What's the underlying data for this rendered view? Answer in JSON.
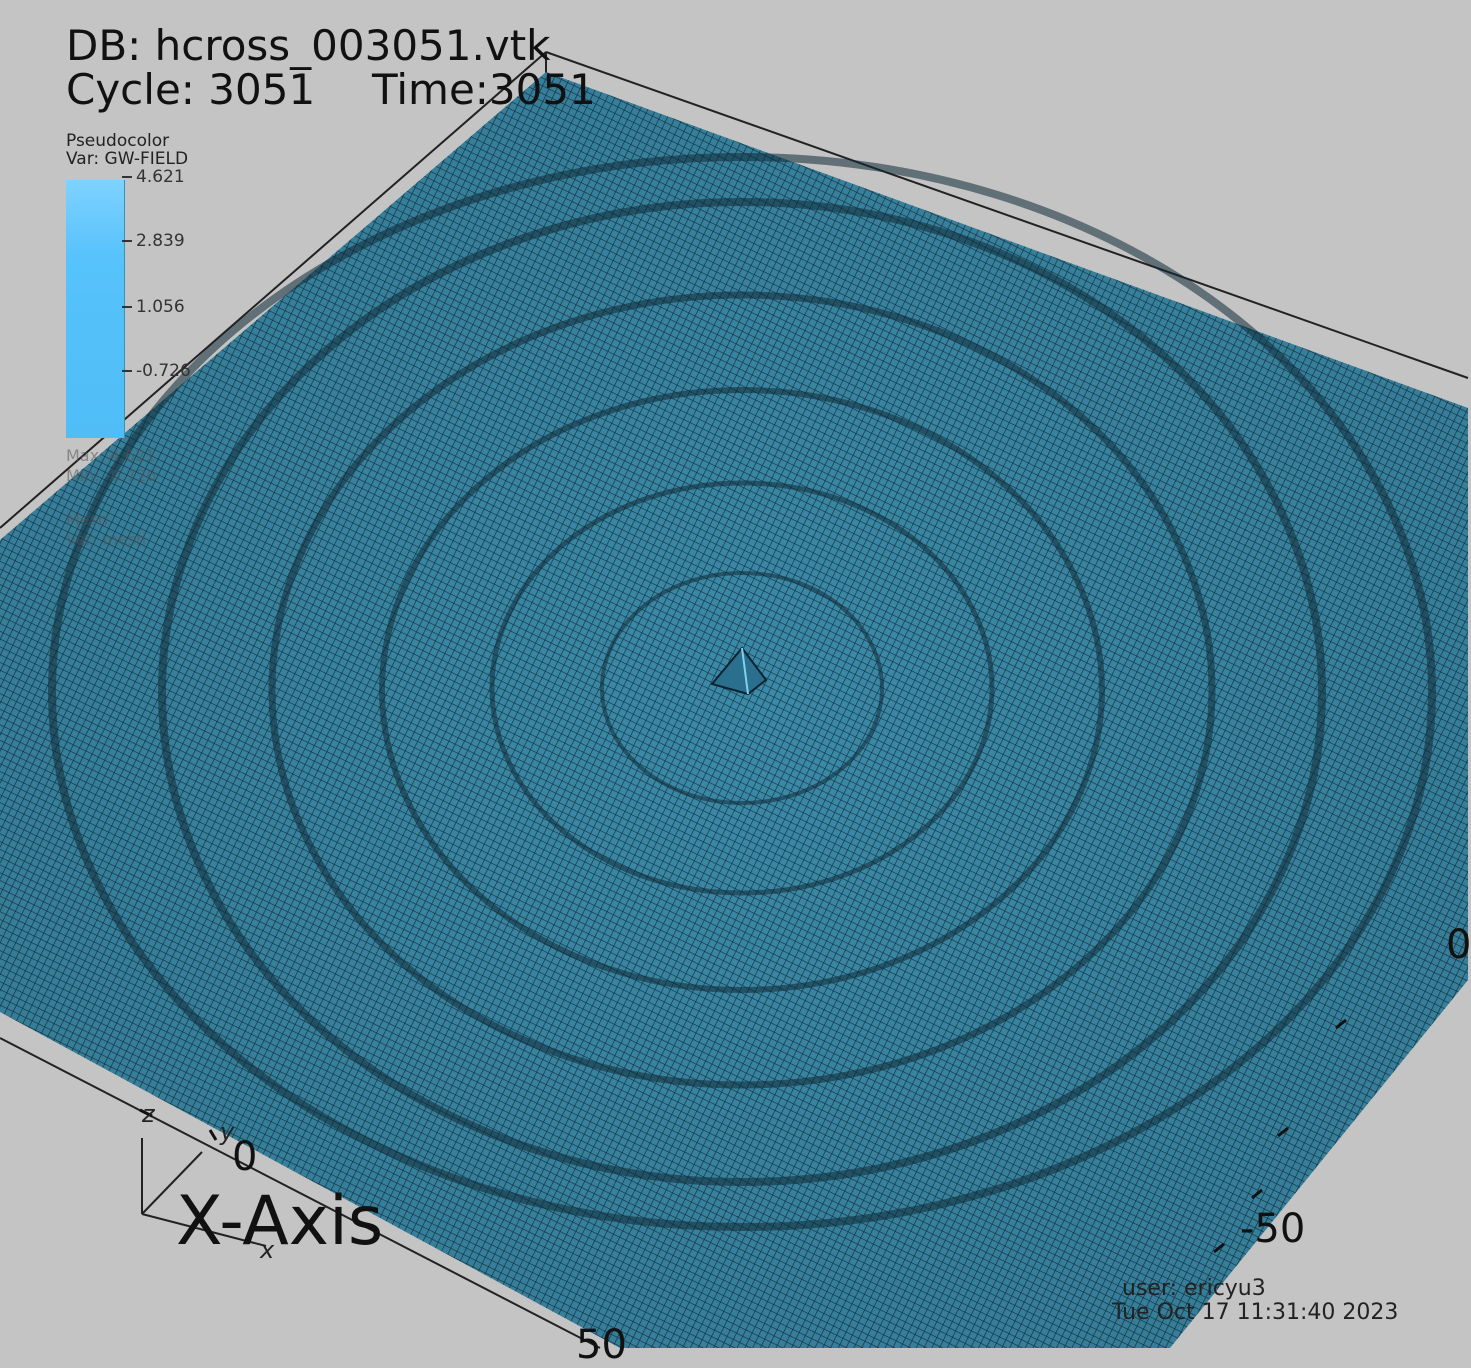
{
  "header": {
    "db_label": "DB: hcross_003051.vtk",
    "cycle_label": "Cycle: 3051",
    "time_label": "Time:3051"
  },
  "legend": {
    "plot_type": "Pseudocolor",
    "variable": "Var: GW-FIELD",
    "ticks": [
      "4.621",
      "2.839",
      "1.056",
      "-0.726"
    ],
    "colorbar_color": "#57c2fb",
    "faded_lines": [
      "Max: 4.621",
      "Min: -0.726",
      "Mesh",
      "Var: mesh"
    ]
  },
  "axes": {
    "x_title": "X-Axis",
    "x_tick_zero": "0",
    "y_tick_neg50": "-50",
    "y_tick_zero_right": "0",
    "bottom_partial": "50",
    "triad_z": "z",
    "triad_y": "y",
    "triad_x": "x"
  },
  "footer": {
    "user": "user: ericyu3",
    "date": "Tue Oct 17 11:31:40 2023"
  },
  "colors": {
    "background": "#c4c4c4",
    "mesh_surface": "#2f6e8a",
    "mesh_line": "#173a4a"
  }
}
